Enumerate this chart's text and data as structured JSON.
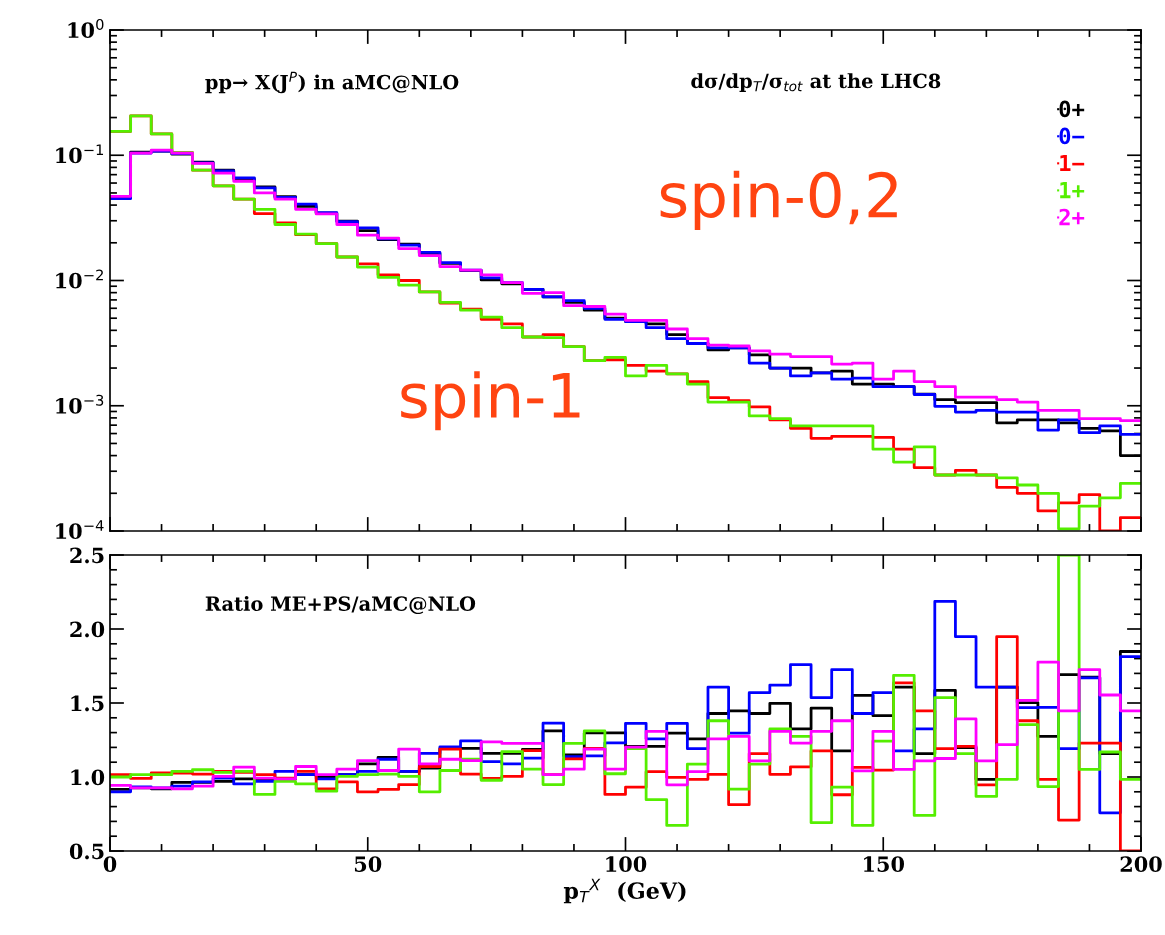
{
  "chart_data": [
    {
      "type": "histogram",
      "bins": [
        0,
        4,
        8,
        12,
        16,
        20,
        24,
        28,
        32,
        36,
        40,
        44,
        48,
        52,
        56,
        60,
        64,
        68,
        72,
        76,
        80,
        84,
        88,
        92,
        96,
        100,
        104,
        108,
        112,
        116,
        120,
        124,
        128,
        132,
        136,
        140,
        144,
        148,
        152,
        156,
        160,
        164,
        168,
        172,
        176,
        180,
        184,
        188,
        192,
        196,
        200
      ],
      "series": [
        {
          "name": "0+",
          "color": "#000000",
          "values": [
            0.046,
            0.106,
            0.108,
            0.102,
            0.088,
            0.076,
            0.065,
            0.056,
            0.0467,
            0.039,
            0.0345,
            0.0298,
            0.025,
            0.0212,
            0.0195,
            0.0165,
            0.0137,
            0.012,
            0.0101,
            0.0094,
            0.0085,
            0.0074,
            0.0067,
            0.0058,
            0.005,
            0.0047,
            0.0045,
            0.0037,
            0.00314,
            0.00279,
            0.0029,
            0.00255,
            0.002,
            0.002,
            0.00183,
            0.00189,
            0.00149,
            0.00149,
            0.00142,
            0.00124,
            0.00112,
            0.00106,
            0.00106,
            0.00073,
            0.00077,
            0.00077,
            0.00073,
            0.00066,
            0.00063,
            0.0004
          ]
        },
        {
          "name": "0−",
          "color": "#0000ff",
          "values": [
            0.045,
            0.104,
            0.108,
            0.103,
            0.087,
            0.075,
            0.066,
            0.055,
            0.046,
            0.0407,
            0.0348,
            0.0295,
            0.0263,
            0.0215,
            0.0192,
            0.0168,
            0.0139,
            0.0121,
            0.0105,
            0.0096,
            0.0085,
            0.0074,
            0.0069,
            0.006,
            0.0049,
            0.0047,
            0.0042,
            0.00343,
            0.00314,
            0.0029,
            0.0029,
            0.00219,
            0.002,
            0.00173,
            0.00183,
            0.00163,
            0.00166,
            0.00142,
            0.00142,
            0.00123,
            0.00099,
            0.00089,
            0.00092,
            0.00089,
            0.00089,
            0.00064,
            0.00077,
            0.00061,
            0.00069,
            0.00059
          ]
        },
        {
          "name": "1−",
          "color": "#ff0000",
          "values": [
            0.155,
            0.206,
            0.148,
            0.105,
            0.076,
            0.057,
            0.0447,
            0.0342,
            0.0289,
            0.0232,
            0.0197,
            0.0154,
            0.0136,
            0.0111,
            0.01,
            0.0081,
            0.0066,
            0.0059,
            0.0049,
            0.0045,
            0.00354,
            0.0037,
            0.00296,
            0.00229,
            0.00233,
            0.0021,
            0.00189,
            0.0018,
            0.00156,
            0.00116,
            0.0011,
            0.00098,
            0.00077,
            0.00066,
            0.00055,
            0.00057,
            0.00057,
            0.00056,
            0.00045,
            0.00032,
            0.00028,
            0.000305,
            0.00028,
            0.000223,
            0.0002,
            0.000145,
            0.000168,
            0.000195,
            0.0001,
            0.000128
          ]
        },
        {
          "name": "1+",
          "color": "#55ee00",
          "values": [
            0.155,
            0.206,
            0.148,
            0.105,
            0.076,
            0.057,
            0.0447,
            0.037,
            0.028,
            0.0235,
            0.0197,
            0.0154,
            0.0128,
            0.0106,
            0.0092,
            0.0081,
            0.0067,
            0.0058,
            0.0051,
            0.0042,
            0.00354,
            0.0035,
            0.00296,
            0.00229,
            0.00243,
            0.00173,
            0.0021,
            0.0018,
            0.00149,
            0.00107,
            0.00107,
            0.00083,
            0.00079,
            0.00069,
            0.00069,
            0.00069,
            0.00069,
            0.00045,
            0.000355,
            0.00047,
            0.00028,
            0.00028,
            0.00028,
            0.000266,
            0.000233,
            0.0002,
            0.000104,
            0.000158,
            0.000184,
            0.00024
          ]
        },
        {
          "name": "2+",
          "color": "#ff00ff",
          "values": [
            0.047,
            0.104,
            0.11,
            0.104,
            0.086,
            0.072,
            0.062,
            0.05,
            0.0447,
            0.037,
            0.034,
            0.028,
            0.023,
            0.0218,
            0.018,
            0.0158,
            0.0129,
            0.0121,
            0.0111,
            0.0096,
            0.0079,
            0.008,
            0.0063,
            0.0062,
            0.0054,
            0.0048,
            0.0048,
            0.0041,
            0.00343,
            0.00305,
            0.003,
            0.00274,
            0.00258,
            0.00247,
            0.00247,
            0.00215,
            0.00219,
            0.00163,
            0.00189,
            0.00156,
            0.00142,
            0.00117,
            0.00117,
            0.00112,
            0.00107,
            0.00092,
            0.00092,
            0.00079,
            0.00079,
            0.00076
          ]
        }
      ],
      "xlim": [
        0,
        200
      ],
      "xticks": [
        0,
        50,
        100,
        150,
        200
      ],
      "ylim": [
        0.0001,
        1
      ],
      "yticks": [
        {
          "value": 1,
          "label": "10$^{0}$"
        },
        {
          "value": 0.1,
          "label": "10$^{−1}$"
        },
        {
          "value": 0.01,
          "label": "10$^{−2}$"
        },
        {
          "value": 0.001,
          "label": "10$^{−3}$"
        },
        {
          "value": 0.0001,
          "label": "10$^{−4}$"
        }
      ],
      "log": "y",
      "legend": "top right",
      "tick_labels": "y",
      "annotations": [
        "pp→ X(J$^{P}$) in aMC@NLO",
        "dσ/dp$_{T}$/σ$_{tot}$ at the LHC8",
        "spin-0,2",
        "spin-1"
      ]
    },
    {
      "type": "histogram",
      "bins": [
        0,
        4,
        8,
        12,
        16,
        20,
        24,
        28,
        32,
        36,
        40,
        44,
        48,
        52,
        56,
        60,
        64,
        68,
        72,
        76,
        80,
        84,
        88,
        92,
        96,
        100,
        104,
        108,
        112,
        116,
        120,
        124,
        128,
        132,
        136,
        140,
        144,
        148,
        152,
        156,
        160,
        164,
        168,
        172,
        176,
        180,
        184,
        188,
        192,
        196,
        200
      ],
      "series": [
        {
          "color": "#000000",
          "values": [
            0.916,
            0.927,
            0.92,
            0.964,
            0.964,
            0.971,
            0.987,
            0.987,
            0.987,
            1.016,
            1.0,
            1.016,
            1.089,
            1.133,
            1.038,
            1.06,
            1.193,
            1.193,
            1.16,
            1.16,
            1.187,
            1.311,
            1.149,
            1.298,
            1.298,
            1.207,
            1.207,
            1.296,
            1.258,
            1.429,
            1.447,
            1.429,
            1.498,
            1.325,
            1.465,
            1.176,
            1.552,
            1.414,
            1.607,
            1.158,
            1.585,
            1.198,
            0.984,
            1.607,
            1.503,
            1.274,
            1.692,
            1.674,
            1.158,
            1.848
          ]
        },
        {
          "color": "#0000ff",
          "values": [
            0.9,
            0.933,
            0.927,
            0.938,
            0.967,
            0.993,
            0.953,
            0.971,
            1.038,
            1.016,
            0.987,
            1.016,
            1.038,
            1.12,
            1.038,
            1.16,
            1.204,
            1.244,
            1.104,
            1.089,
            1.127,
            1.364,
            1.138,
            1.142,
            1.231,
            1.363,
            1.258,
            1.363,
            1.191,
            1.607,
            1.296,
            1.57,
            1.621,
            1.759,
            1.536,
            1.725,
            1.429,
            1.57,
            1.176,
            1.325,
            2.186,
            1.948,
            1.607,
            1.607,
            1.469,
            1.47,
            1.191,
            1.67,
            0.758,
            1.814
          ]
        },
        {
          "color": "#ff0000",
          "values": [
            1.016,
            0.99,
            1.027,
            1.027,
            1.02,
            1.038,
            1.031,
            1.016,
            0.993,
            1.038,
            0.92,
            0.967,
            0.9,
            0.916,
            0.949,
            1.071,
            1.189,
            1.02,
            0.99,
            1.004,
            1.178,
            1.016,
            1.122,
            1.193,
            0.882,
            0.931,
            1.036,
            0.998,
            0.984,
            1.018,
            0.813,
            1.158,
            1.018,
            1.069,
            1.176,
            0.88,
            1.065,
            1.047,
            1.636,
            1.447,
            1.191,
            1.207,
            0.947,
            1.948,
            1.38,
            0.984,
            0.709,
            1.229,
            1.229,
            0.5
          ]
        },
        {
          "color": "#55ee00",
          "values": [
            1.0,
            1.016,
            1.016,
            1.038,
            1.049,
            1.031,
            1.038,
            0.882,
            0.971,
            0.953,
            0.904,
            1.004,
            1.016,
            1.02,
            1.004,
            0.9,
            1.044,
            1.12,
            0.978,
            1.171,
            1.053,
            0.949,
            1.227,
            1.311,
            1.022,
            1.191,
            0.847,
            0.673,
            1.087,
            1.38,
            0.918,
            1.087,
            1.325,
            1.274,
            0.691,
            0.931,
            0.673,
            1.242,
            1.687,
            0.74,
            1.536,
            1.158,
            0.869,
            0.984,
            1.354,
            0.935,
            2.5,
            1.051,
            1.169,
            0.984
          ]
        },
        {
          "color": "#ff00ff",
          "values": [
            0.944,
            0.927,
            0.927,
            0.92,
            0.938,
            1.004,
            1.067,
            0.993,
            0.987,
            1.071,
            1.016,
            1.053,
            1.111,
            1.044,
            1.189,
            1.089,
            1.12,
            1.111,
            1.238,
            1.227,
            1.227,
            1.016,
            1.053,
            1.189,
            1.053,
            1.202,
            1.309,
            0.947,
            1.036,
            1.258,
            1.274,
            1.109,
            1.309,
            1.229,
            1.309,
            1.38,
            1.042,
            1.309,
            1.051,
            1.109,
            1.125,
            1.392,
            1.109,
            1.218,
            1.518,
            1.776,
            1.447,
            1.725,
            1.554,
            1.447
          ]
        }
      ],
      "xlim": [
        0,
        200
      ],
      "xticks": [
        0,
        50,
        100,
        150,
        200
      ],
      "ylim": [
        0.5,
        2.5
      ],
      "yticks": [
        {
          "value": 0.5,
          "label": "0.5"
        },
        {
          "value": 1,
          "label": "1.0"
        },
        {
          "value": 1.5,
          "label": "1.5"
        },
        {
          "value": 2,
          "label": "2.0"
        },
        {
          "value": 2.5,
          "label": "2.5"
        }
      ],
      "xlabel": "p$_{T}$$^{X}$  (GeV)",
      "annotations": [
        "Ratio ME+PS/aMC@NLO"
      ]
    }
  ]
}
